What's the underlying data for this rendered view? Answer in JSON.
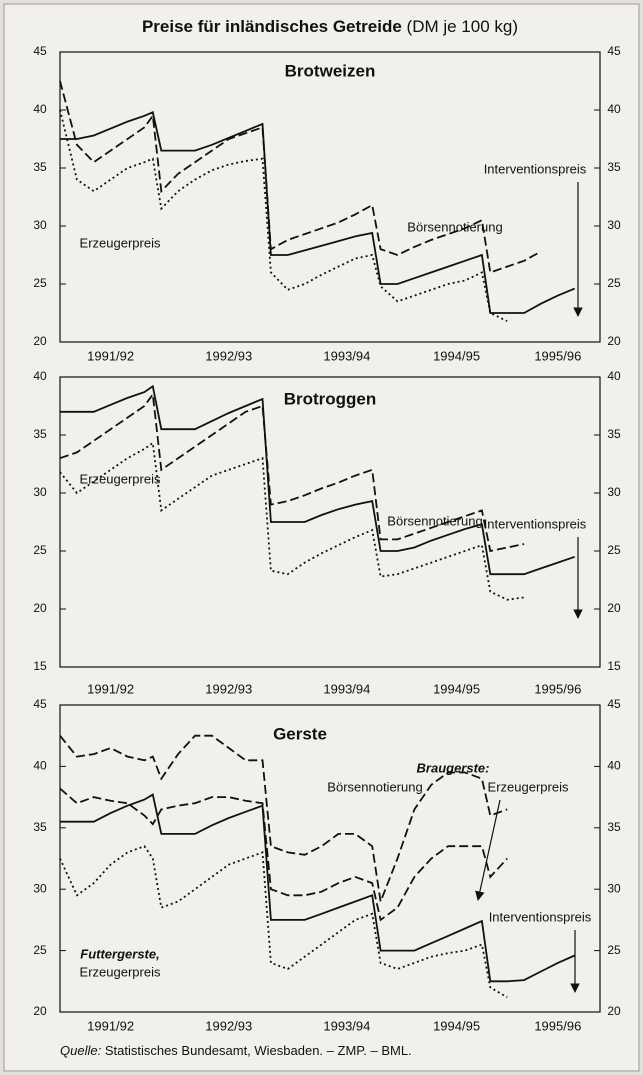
{
  "title": "Preise für inländisches Getreide",
  "title_unit": "(DM je 100 kg)",
  "source_label": "Quelle:",
  "source": "Statistisches Bundesamt, Wiesbaden. – ZMP. – BML.",
  "chart_data": [
    {
      "type": "line",
      "title": "Brotweizen",
      "xlim": [
        0,
        64
      ],
      "xticks": [
        {
          "value": 6,
          "label": "1991/92"
        },
        {
          "value": 20,
          "label": "1992/93"
        },
        {
          "value": 34,
          "label": "1993/94"
        },
        {
          "value": 47,
          "label": "1994/95"
        },
        {
          "value": 59,
          "label": "1995/96"
        }
      ],
      "ylim": [
        20,
        45
      ],
      "yticks": [
        20,
        25,
        30,
        35,
        40,
        45
      ],
      "x": [
        0,
        2,
        4,
        6,
        8,
        10,
        11,
        12,
        14,
        16,
        18,
        20,
        22,
        24,
        25,
        27,
        29,
        31,
        33,
        35,
        37,
        38,
        40,
        42,
        44,
        46,
        48,
        50,
        51,
        53,
        55,
        57,
        59,
        61
      ],
      "series": [
        {
          "name": "Interventionspreis",
          "color": "#111111",
          "style": "solid",
          "values": [
            37.5,
            37.5,
            37.8,
            38.4,
            39,
            39.5,
            39.8,
            36.5,
            36.5,
            36.5,
            37,
            37.6,
            38.2,
            38.8,
            27.5,
            27.5,
            27.9,
            28.3,
            28.7,
            29.1,
            29.4,
            25,
            25,
            25.5,
            26,
            26.5,
            27,
            27.5,
            22.5,
            22.5,
            22.5,
            23.3,
            24,
            24.6
          ]
        },
        {
          "name": "Börsennotierung",
          "color": "#111111",
          "style": "dashed",
          "values": [
            42.5,
            37,
            35.5,
            36.5,
            37.5,
            38.5,
            39.5,
            33,
            34.5,
            35.5,
            36.5,
            37.5,
            38,
            38.5,
            28,
            28.8,
            29.3,
            29.8,
            30.3,
            31,
            31.8,
            28,
            27.5,
            28.2,
            28.8,
            29.3,
            29.8,
            30.5,
            26,
            26.5,
            27,
            27.8,
            null,
            null
          ]
        },
        {
          "name": "Erzeugerpreis",
          "color": "#111111",
          "style": "dotted",
          "values": [
            40,
            34,
            33,
            34,
            35,
            35.5,
            35.8,
            31.5,
            33,
            34,
            34.8,
            35.3,
            35.6,
            35.8,
            26,
            24.5,
            25,
            25.8,
            26.5,
            27.2,
            27.5,
            24.8,
            23.5,
            24,
            24.5,
            25,
            25.3,
            26,
            22.5,
            21.8,
            null,
            null,
            null,
            null
          ]
        }
      ]
    },
    {
      "type": "line",
      "title": "Brotroggen",
      "xlim": [
        0,
        64
      ],
      "xticks": [
        {
          "value": 6,
          "label": "1991/92"
        },
        {
          "value": 20,
          "label": "1992/93"
        },
        {
          "value": 34,
          "label": "1993/94"
        },
        {
          "value": 47,
          "label": "1994/95"
        },
        {
          "value": 59,
          "label": "1995/96"
        }
      ],
      "ylim": [
        15,
        40
      ],
      "yticks": [
        15,
        20,
        25,
        30,
        35,
        40
      ],
      "x": [
        0,
        2,
        4,
        6,
        8,
        10,
        11,
        12,
        14,
        16,
        18,
        20,
        22,
        24,
        25,
        27,
        29,
        31,
        33,
        35,
        37,
        38,
        40,
        42,
        44,
        46,
        48,
        50,
        51,
        53,
        55,
        57,
        59,
        61
      ],
      "series": [
        {
          "name": "Interventionspreis",
          "color": "#111111",
          "style": "solid",
          "values": [
            37,
            37,
            37,
            37.6,
            38.2,
            38.7,
            39.2,
            35.5,
            35.5,
            35.5,
            36.2,
            36.9,
            37.5,
            38.1,
            27.5,
            27.5,
            27.5,
            28.1,
            28.6,
            29,
            29.3,
            25,
            25,
            25.3,
            25.9,
            26.4,
            26.9,
            27.3,
            23,
            23,
            23,
            23.5,
            24,
            24.5
          ]
        },
        {
          "name": "Börsennotierung",
          "color": "#111111",
          "style": "dashed",
          "values": [
            33,
            33.5,
            34.5,
            35.5,
            36.5,
            37.5,
            38.5,
            32,
            33,
            34,
            35,
            36,
            37,
            37.5,
            29,
            29.3,
            29.8,
            30.4,
            30.9,
            31.5,
            32,
            26,
            26,
            26.5,
            27,
            27.5,
            28,
            28.5,
            25,
            25.3,
            25.6,
            null,
            null,
            null
          ]
        },
        {
          "name": "Erzeugerpreis",
          "color": "#111111",
          "style": "dotted",
          "values": [
            31.8,
            30,
            31,
            32,
            33,
            33.8,
            34.3,
            28.5,
            29.5,
            30.5,
            31.5,
            32,
            32.5,
            33,
            23.3,
            23,
            24,
            24.8,
            25.5,
            26.2,
            26.8,
            22.8,
            23,
            23.5,
            24,
            24.5,
            25,
            25.5,
            21.5,
            20.8,
            21,
            null,
            null,
            null
          ]
        }
      ]
    },
    {
      "type": "line",
      "title": "Gerste",
      "xlim": [
        0,
        64
      ],
      "xticks": [
        {
          "value": 6,
          "label": "1991/92"
        },
        {
          "value": 20,
          "label": "1992/93"
        },
        {
          "value": 34,
          "label": "1993/94"
        },
        {
          "value": 47,
          "label": "1994/95"
        },
        {
          "value": 59,
          "label": "1995/96"
        }
      ],
      "ylim": [
        20,
        45
      ],
      "yticks": [
        20,
        25,
        30,
        35,
        40,
        45
      ],
      "annotations": [
        "Braugerste:",
        "Futtergerste,"
      ],
      "x": [
        0,
        2,
        4,
        6,
        8,
        10,
        11,
        12,
        14,
        16,
        18,
        20,
        22,
        24,
        25,
        27,
        29,
        31,
        33,
        35,
        37,
        38,
        40,
        42,
        44,
        46,
        48,
        50,
        51,
        53,
        55,
        57,
        59,
        61
      ],
      "series": [
        {
          "name": "Interventionspreis",
          "color": "#111111",
          "style": "solid",
          "values": [
            35.5,
            35.5,
            35.5,
            36.2,
            36.8,
            37.3,
            37.7,
            34.5,
            34.5,
            34.5,
            35.2,
            35.8,
            36.3,
            36.8,
            27.5,
            27.5,
            27.5,
            28,
            28.5,
            29,
            29.5,
            25,
            25,
            25,
            25.6,
            26.2,
            26.8,
            27.4,
            22.5,
            22.5,
            22.6,
            23.3,
            24,
            24.6
          ]
        },
        {
          "name": "Börsennotierung",
          "color": "#111111",
          "style": "dashed",
          "values": [
            42.5,
            40.8,
            41,
            41.5,
            40.8,
            40.5,
            40.8,
            39,
            41,
            42.5,
            42.5,
            41.5,
            40.5,
            40.5,
            33.5,
            33,
            32.8,
            33.5,
            34.5,
            34.5,
            33.5,
            29,
            32.5,
            36.5,
            38.5,
            39.5,
            39.5,
            39,
            36,
            36.5,
            null,
            null,
            null,
            null
          ]
        },
        {
          "name": "Erzeugerpreis",
          "color": "#111111",
          "style": "dashed",
          "values": [
            38.2,
            37,
            37.5,
            37.2,
            37,
            36,
            35.3,
            36.5,
            36.8,
            37,
            37.5,
            37.5,
            37.2,
            37,
            30,
            29.5,
            29.5,
            29.8,
            30.5,
            31,
            30.5,
            27.5,
            28.5,
            31,
            32.5,
            33.5,
            33.5,
            33.5,
            31,
            32.5,
            null,
            null,
            null,
            null
          ]
        },
        {
          "name": "Erzeugerpreis",
          "color": "#111111",
          "style": "dotted",
          "values": [
            32.5,
            29.5,
            30.5,
            32,
            33,
            33.5,
            32.5,
            28.5,
            29,
            30,
            31,
            32,
            32.5,
            33,
            24,
            23.5,
            24.5,
            25.5,
            26.5,
            27.5,
            28,
            24,
            23.5,
            24,
            24.5,
            24.8,
            25,
            25.5,
            22,
            21.2,
            null,
            null,
            null,
            null
          ]
        }
      ]
    }
  ]
}
